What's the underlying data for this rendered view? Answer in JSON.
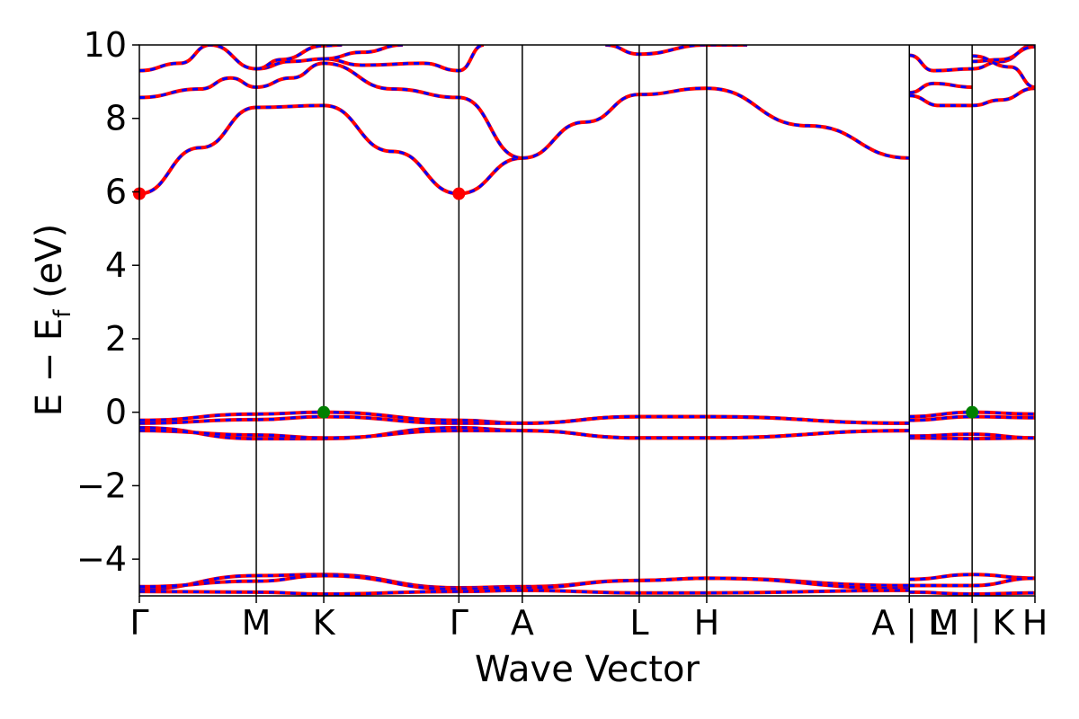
{
  "chart_data": {
    "type": "line",
    "title": "",
    "xlabel": "Wave Vector",
    "ylabel": "E − E_f (eV)",
    "ylabel_main": "E  −  E",
    "ylabel_sub": "f",
    "ylabel_tail": " (eV)",
    "ylim": [
      -5,
      10
    ],
    "yticks": [
      -4,
      -2,
      0,
      2,
      4,
      6,
      8,
      10
    ],
    "ytick_labels": [
      "−4",
      "−2",
      "0",
      "2",
      "4",
      "6",
      "8",
      "10"
    ],
    "kpoint_labels": [
      "Γ",
      "M",
      "K",
      "Γ",
      "A",
      "L",
      "H",
      "A | L",
      "M | K",
      "H"
    ],
    "kpoint_positions": [
      0,
      0.577,
      0.91,
      1.577,
      1.89,
      2.467,
      2.8,
      3.8,
      4.11,
      4.42
    ],
    "xlim": [
      0,
      4.42
    ],
    "grid": false,
    "colors": {
      "line_primary": "#ff0000",
      "line_overlay": "#0000ff",
      "cbm": "#ff0000",
      "vbm": "#008000"
    },
    "series": [
      {
        "x": [
          0,
          0.3,
          0.577,
          0.91,
          1.25,
          1.577,
          1.89,
          2.2,
          2.467,
          2.8,
          3.3,
          3.8
        ],
        "values": [
          5.95,
          7.2,
          8.3,
          8.35,
          7.1,
          5.95,
          6.92,
          7.9,
          8.65,
          8.82,
          7.8,
          6.92
        ]
      },
      {
        "x": [
          0,
          0.3,
          0.45,
          0.577,
          0.75,
          0.91,
          1.25,
          1.577,
          1.89
        ],
        "values": [
          8.57,
          8.8,
          9.1,
          8.85,
          9.1,
          9.5,
          8.8,
          8.57,
          6.92
        ]
      },
      {
        "x": [
          0,
          0.2,
          0.35,
          0.577,
          0.75,
          0.91,
          1.1,
          1.4,
          1.577,
          1.7
        ],
        "values": [
          9.3,
          9.5,
          10.0,
          9.35,
          9.55,
          9.62,
          9.45,
          9.5,
          9.3,
          10.0
        ]
      },
      {
        "x": [
          0.91,
          1.1,
          1.3
        ],
        "values": [
          9.62,
          9.8,
          10.0
        ]
      },
      {
        "x": [
          2.3,
          2.467,
          2.8,
          3.0
        ],
        "values": [
          10.0,
          9.75,
          10.0,
          10.0
        ]
      },
      {
        "x": [
          0.577,
          0.7,
          0.91,
          1.0
        ],
        "values": [
          9.35,
          9.6,
          9.98,
          10.0
        ]
      },
      {
        "x": [
          3.8,
          3.92,
          4.11,
          4.25,
          4.42
        ],
        "values": [
          9.72,
          9.3,
          9.35,
          9.55,
          10.0
        ]
      },
      {
        "x": [
          3.8,
          3.92,
          4.11
        ],
        "values": [
          8.7,
          8.95,
          8.85
        ]
      },
      {
        "x": [
          3.8,
          3.95,
          4.11,
          4.25,
          4.42
        ],
        "values": [
          8.62,
          8.35,
          8.35,
          8.5,
          8.82
        ]
      },
      {
        "x": [
          4.11,
          4.25,
          4.42
        ],
        "values": [
          9.55,
          9.6,
          9.95
        ]
      },
      {
        "x": [
          4.11,
          4.3,
          4.42
        ],
        "values": [
          9.7,
          9.4,
          8.85
        ]
      },
      {
        "x": [
          0,
          0.577,
          0.91,
          1.577,
          1.89,
          2.467,
          2.8,
          3.8
        ],
        "values": [
          -0.22,
          -0.05,
          0.0,
          -0.22,
          -0.3,
          -0.12,
          -0.12,
          -0.3
        ]
      },
      {
        "x": [
          0,
          0.577,
          0.91,
          1.577,
          1.89,
          2.467,
          2.8,
          3.8
        ],
        "values": [
          -0.3,
          -0.2,
          -0.12,
          -0.3,
          -0.3,
          -0.12,
          -0.12,
          -0.3
        ]
      },
      {
        "x": [
          0,
          0.577,
          0.91,
          1.577,
          1.89,
          2.467,
          2.8,
          3.8
        ],
        "values": [
          -0.42,
          -0.72,
          -0.72,
          -0.42,
          -0.5,
          -0.7,
          -0.7,
          -0.5
        ]
      },
      {
        "x": [
          0,
          0.577,
          0.91,
          1.577,
          1.89,
          2.467,
          2.8,
          3.8
        ],
        "values": [
          -0.5,
          -0.62,
          -0.7,
          -0.5,
          -0.5,
          -0.7,
          -0.7,
          -0.5
        ]
      },
      {
        "x": [
          3.8,
          4.11,
          4.42
        ],
        "values": [
          -0.12,
          0.0,
          -0.05
        ]
      },
      {
        "x": [
          3.8,
          4.11,
          4.42
        ],
        "values": [
          -0.22,
          -0.12,
          -0.15
        ]
      },
      {
        "x": [
          3.8,
          4.11,
          4.42
        ],
        "values": [
          -0.7,
          -0.72,
          -0.7
        ]
      },
      {
        "x": [
          3.8,
          4.11,
          4.42
        ],
        "values": [
          -0.65,
          -0.6,
          -0.7
        ]
      },
      {
        "x": [
          0,
          0.577,
          0.91,
          1.577,
          1.89,
          2.467,
          2.8,
          3.8
        ],
        "values": [
          -4.82,
          -4.45,
          -4.42,
          -4.78,
          -4.75,
          -4.58,
          -4.52,
          -4.72
        ]
      },
      {
        "x": [
          0,
          0.577,
          0.91,
          1.577,
          1.89,
          2.467,
          2.8,
          3.8
        ],
        "values": [
          -4.75,
          -4.6,
          -4.45,
          -4.82,
          -4.78,
          -4.58,
          -4.52,
          -4.8
        ]
      },
      {
        "x": [
          0,
          0.577,
          0.91,
          1.577,
          1.89,
          2.467,
          2.8,
          3.8
        ],
        "values": [
          -4.88,
          -4.9,
          -4.95,
          -4.88,
          -4.85,
          -4.92,
          -4.92,
          -4.85
        ]
      },
      {
        "x": [
          3.8,
          4.11,
          4.42
        ],
        "values": [
          -4.55,
          -4.42,
          -4.52
        ]
      },
      {
        "x": [
          3.8,
          4.11,
          4.42
        ],
        "values": [
          -4.72,
          -4.72,
          -4.52
        ]
      },
      {
        "x": [
          3.8,
          4.11,
          4.42
        ],
        "values": [
          -4.9,
          -4.95,
          -4.92
        ]
      }
    ],
    "cbm_points": [
      {
        "x": 0,
        "y": 5.95
      },
      {
        "x": 1.577,
        "y": 5.95
      }
    ],
    "vbm_points": [
      {
        "x": 0.91,
        "y": 0.0
      },
      {
        "x": 4.11,
        "y": 0.0
      }
    ]
  }
}
